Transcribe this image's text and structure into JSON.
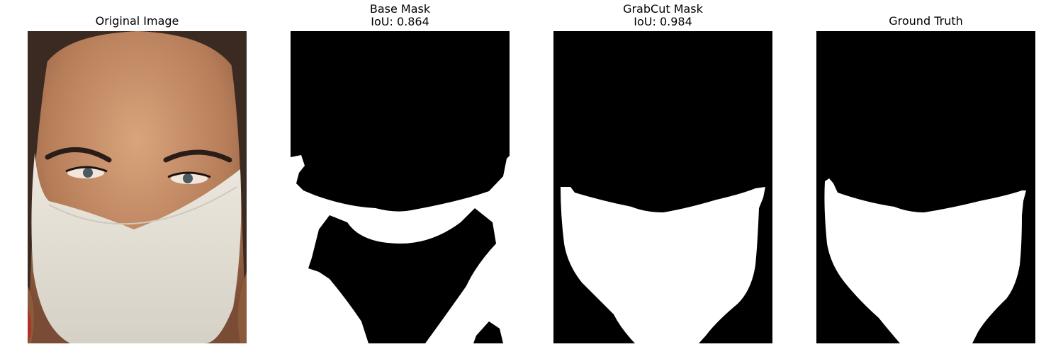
{
  "panels": [
    {
      "id": "original",
      "title_lines": [
        "Original Image"
      ]
    },
    {
      "id": "base-mask",
      "title_lines": [
        "Base Mask",
        "IoU: 0.864"
      ]
    },
    {
      "id": "grabcut-mask",
      "title_lines": [
        "GrabCut Mask",
        "IoU: 0.984"
      ]
    },
    {
      "id": "ground-truth",
      "title_lines": [
        "Ground Truth"
      ]
    }
  ],
  "colors": {
    "background": "#000000",
    "mask": "#ffffff",
    "skin": "#c08a66",
    "hair": "#3b2a22",
    "mask_fabric": "#e6e2d8"
  }
}
